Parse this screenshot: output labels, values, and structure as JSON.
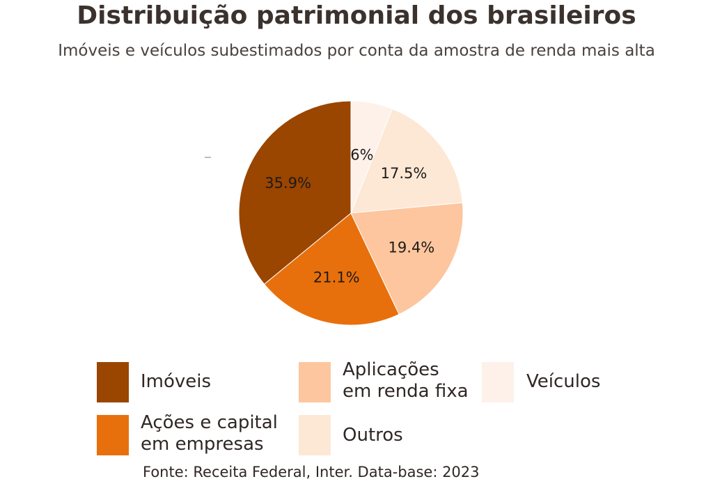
{
  "title": "Distribuição patrimonial dos brasileiros",
  "subtitle": "Imóveis e veículos subestimados por conta da amostra de renda mais alta",
  "source": "Fonte: Receita Federal, Inter. Data-base: 2023",
  "chart_data": {
    "type": "pie",
    "unit": "%",
    "slices": [
      {
        "label": "Veículos",
        "legend": "Veículos",
        "value": 6,
        "value_label": "6%",
        "color": "#fdf1ea"
      },
      {
        "label": "Outros",
        "legend": "Outros",
        "value": 17.5,
        "value_label": "17.5%",
        "color": "#fde8d6"
      },
      {
        "label": "Aplicações em renda fixa",
        "legend": "Aplicações\nem renda fixa",
        "value": 19.4,
        "value_label": "19.4%",
        "color": "#fdc69e"
      },
      {
        "label": "Ações e capital em empresas",
        "legend": "Ações e capital\nem empresas",
        "value": 21.1,
        "value_label": "21.1%",
        "color": "#e8700c"
      },
      {
        "label": "Imóveis",
        "legend": "Imóveis",
        "value": 35.9,
        "value_label": "35.9%",
        "color": "#9a4500"
      }
    ]
  }
}
